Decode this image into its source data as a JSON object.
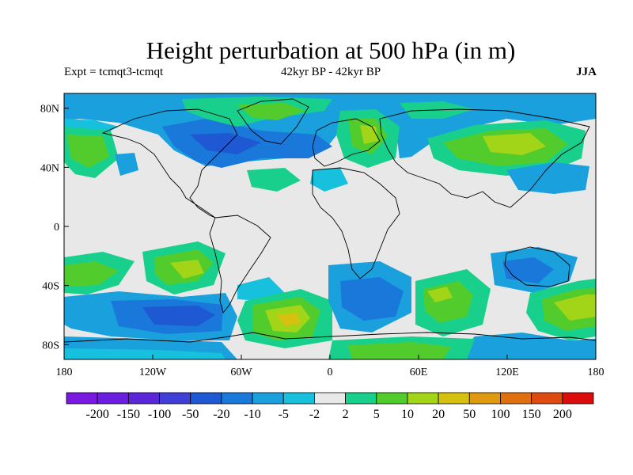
{
  "header": {
    "title": "Height perturbation at 500 hPa (in m)",
    "experiment": "Expt = tcmqt3-tcmqt",
    "period": "42kyr BP - 42kyr BP",
    "season": "JJA"
  },
  "map": {
    "lon_range": [
      -180,
      180
    ],
    "lat_range": [
      -90,
      90
    ],
    "x_ticks": [
      {
        "value": -180,
        "label": "180"
      },
      {
        "value": -120,
        "label": "120W"
      },
      {
        "value": -60,
        "label": "60W"
      },
      {
        "value": 0,
        "label": "0"
      },
      {
        "value": 60,
        "label": "60E"
      },
      {
        "value": 120,
        "label": "120E"
      },
      {
        "value": 180,
        "label": "180"
      }
    ],
    "y_ticks": [
      {
        "value": 80,
        "label": "80N"
      },
      {
        "value": 40,
        "label": "40N"
      },
      {
        "value": 0,
        "label": "0"
      },
      {
        "value": -40,
        "label": "40S"
      },
      {
        "value": -80,
        "label": "80S"
      }
    ],
    "background_color": "#e8e8e8",
    "coastline_color": "#000000"
  },
  "colorbar": {
    "labels": [
      "-200",
      "-150",
      "-100",
      "-50",
      "-20",
      "-10",
      "-5",
      "-2",
      "2",
      "5",
      "10",
      "20",
      "50",
      "100",
      "150",
      "200"
    ],
    "colors": [
      "#7a17e0",
      "#6c1ee0",
      "#5b26d8",
      "#3f3ed6",
      "#1e58d2",
      "#1a78da",
      "#19a0dd",
      "#17c0dc",
      "#e8e8e8",
      "#18d08c",
      "#52cc2c",
      "#a2d418",
      "#d6c010",
      "#e09a10",
      "#e0700e",
      "#de4a10",
      "#dc0c0c"
    ]
  }
}
